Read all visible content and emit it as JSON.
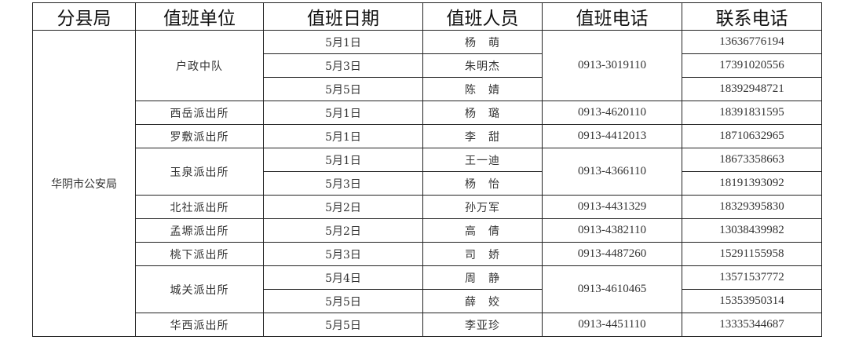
{
  "headers": [
    "分县局",
    "值班单位",
    "值班日期",
    "值班人员",
    "值班电话",
    "联系电话"
  ],
  "bureau": "华阴市公安局",
  "groups": [
    {
      "unit": "户政中队",
      "duty_phone": "0913-3019110",
      "rows": [
        {
          "date": "5月1日",
          "person": "杨　萌",
          "contact": "13636776194"
        },
        {
          "date": "5月3日",
          "person": "朱明杰",
          "contact": "17391020556"
        },
        {
          "date": "5月5日",
          "person": "陈　婧",
          "contact": "18392948721"
        }
      ]
    },
    {
      "unit": "西岳派出所",
      "duty_phone": "0913-4620110",
      "rows": [
        {
          "date": "5月1日",
          "person": "杨　璐",
          "contact": "18391831595"
        }
      ]
    },
    {
      "unit": "罗敷派出所",
      "duty_phone": "0913-4412013",
      "rows": [
        {
          "date": "5月1日",
          "person": "李　甜",
          "contact": "18710632965"
        }
      ]
    },
    {
      "unit": "玉泉派出所",
      "duty_phone": "0913-4366110",
      "rows": [
        {
          "date": "5月1日",
          "person": "王一迪",
          "contact": "18673358663"
        },
        {
          "date": "5月3日",
          "person": "杨　怡",
          "contact": "18191393092"
        }
      ]
    },
    {
      "unit": "北社派出所",
      "duty_phone": "0913-4431329",
      "rows": [
        {
          "date": "5月2日",
          "person": "孙万军",
          "contact": "18329395830"
        }
      ]
    },
    {
      "unit": "孟塬派出所",
      "duty_phone": "0913-4382110",
      "rows": [
        {
          "date": "5月2日",
          "person": "高　倩",
          "contact": "13038439982"
        }
      ]
    },
    {
      "unit": "桃下派出所",
      "duty_phone": "0913-4487260",
      "rows": [
        {
          "date": "5月3日",
          "person": "司　娇",
          "contact": "15291155958"
        }
      ]
    },
    {
      "unit": "城关派出所",
      "duty_phone": "0913-4610465",
      "rows": [
        {
          "date": "5月4日",
          "person": "周　静",
          "contact": "13571537772"
        },
        {
          "date": "5月5日",
          "person": "薛　姣",
          "contact": "15353950314"
        }
      ]
    },
    {
      "unit": "华西派出所",
      "duty_phone": "0913-4451110",
      "rows": [
        {
          "date": "5月5日",
          "person": "李亚珍",
          "contact": "13335344687"
        }
      ]
    }
  ]
}
